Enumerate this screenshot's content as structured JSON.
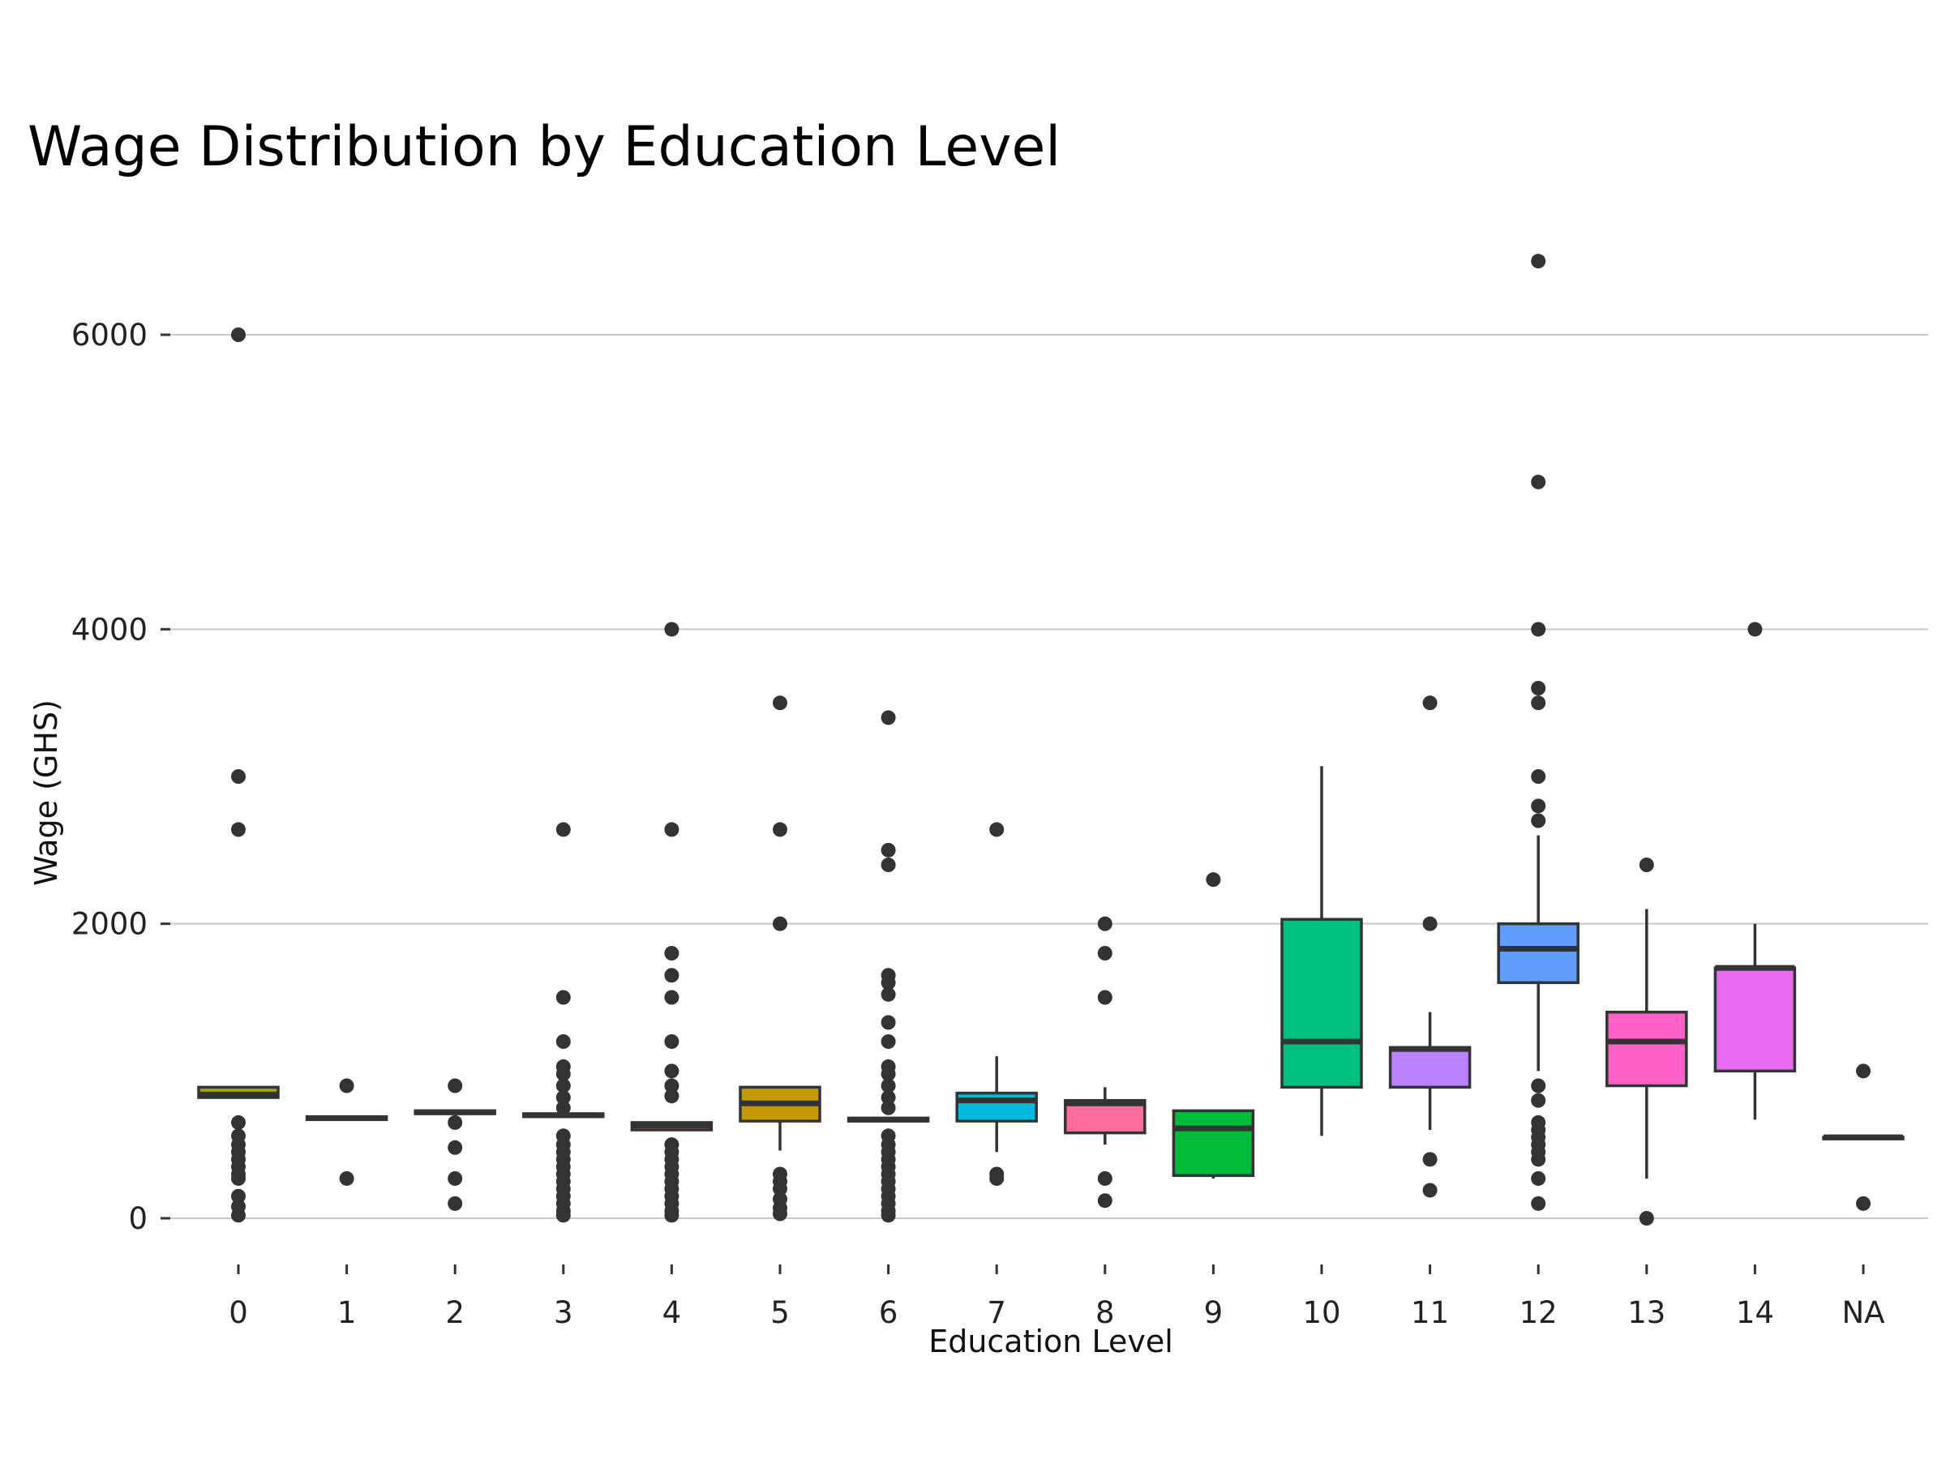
{
  "chart_data": {
    "type": "box",
    "title": "Wage Distribution by Education Level",
    "xlabel": "Education Level",
    "ylabel": "Wage (GHS)",
    "ylim": [
      -300,
      6600
    ],
    "yticks": [
      0,
      2000,
      4000,
      6000
    ],
    "grid": "horizontal",
    "legend": "none",
    "categories": [
      "0",
      "1",
      "2",
      "3",
      "4",
      "5",
      "6",
      "7",
      "8",
      "9",
      "10",
      "11",
      "12",
      "13",
      "14",
      "NA"
    ],
    "boxes": [
      {
        "category": "0",
        "color": "#A3A500",
        "q1": 820,
        "median": 840,
        "q3": 890,
        "whisker_low": 820,
        "whisker_high": 890,
        "outliers": [
          6000,
          3000,
          2640,
          650,
          560,
          500,
          450,
          400,
          350,
          300,
          270,
          150,
          80,
          20
        ]
      },
      {
        "category": "1",
        "color": "#E7861B",
        "q1": 670,
        "median": 680,
        "q3": 690,
        "whisker_low": 670,
        "whisker_high": 690,
        "outliers": [
          900,
          270
        ]
      },
      {
        "category": "2",
        "color": "#C49A00",
        "q1": 710,
        "median": 720,
        "q3": 730,
        "whisker_low": 710,
        "whisker_high": 730,
        "outliers": [
          900,
          650,
          480,
          270,
          100
        ]
      },
      {
        "category": "3",
        "color": "#ED8141",
        "q1": 690,
        "median": 700,
        "q3": 710,
        "whisker_low": 690,
        "whisker_high": 710,
        "outliers": [
          2640,
          1500,
          1200,
          1030,
          980,
          900,
          820,
          750,
          560,
          500,
          450,
          400,
          350,
          300,
          250,
          200,
          150,
          100,
          50,
          20
        ]
      },
      {
        "category": "4",
        "color": "#F8766D",
        "q1": 600,
        "median": 630,
        "q3": 650,
        "whisker_low": 600,
        "whisker_high": 650,
        "outliers": [
          4000,
          2640,
          1800,
          1650,
          1500,
          1200,
          1000,
          900,
          830,
          500,
          450,
          400,
          350,
          300,
          250,
          200,
          150,
          100,
          50,
          20
        ]
      },
      {
        "category": "5",
        "color": "#C49A00",
        "q1": 660,
        "median": 780,
        "q3": 890,
        "whisker_low": 460,
        "whisker_high": 890,
        "outliers": [
          3500,
          2640,
          2000,
          300,
          250,
          200,
          130,
          70,
          30
        ]
      },
      {
        "category": "6",
        "color": "#999999",
        "q1": 660,
        "median": 670,
        "q3": 680,
        "whisker_low": 660,
        "whisker_high": 680,
        "outliers": [
          3400,
          2500,
          2400,
          1650,
          1600,
          1520,
          1330,
          1200,
          1030,
          980,
          900,
          820,
          750,
          560,
          500,
          450,
          400,
          350,
          300,
          250,
          200,
          150,
          100,
          50,
          20
        ]
      },
      {
        "category": "7",
        "color": "#00BAE0",
        "q1": 660,
        "median": 800,
        "q3": 850,
        "whisker_low": 450,
        "whisker_high": 1100,
        "outliers": [
          2640,
          300,
          270
        ]
      },
      {
        "category": "8",
        "color": "#FF6C9C",
        "q1": 580,
        "median": 780,
        "q3": 800,
        "whisker_low": 500,
        "whisker_high": 890,
        "outliers": [
          2000,
          1800,
          1500,
          270,
          120
        ]
      },
      {
        "category": "9",
        "color": "#00BC3A",
        "q1": 290,
        "median": 610,
        "q3": 730,
        "whisker_low": 270,
        "whisker_high": 730,
        "outliers": [
          2300
        ]
      },
      {
        "category": "10",
        "color": "#00C080",
        "q1": 890,
        "median": 1200,
        "q3": 2030,
        "whisker_low": 560,
        "whisker_high": 3070,
        "outliers": []
      },
      {
        "category": "11",
        "color": "#B983FF",
        "q1": 890,
        "median": 1150,
        "q3": 1160,
        "whisker_low": 600,
        "whisker_high": 1400,
        "outliers": [
          3500,
          2000,
          400,
          190
        ]
      },
      {
        "category": "12",
        "color": "#619CFF",
        "q1": 1600,
        "median": 1830,
        "q3": 2000,
        "whisker_low": 1000,
        "whisker_high": 2600,
        "outliers": [
          6500,
          5000,
          4000,
          3600,
          3500,
          3000,
          2800,
          2700,
          900,
          800,
          650,
          600,
          550,
          500,
          450,
          400,
          270,
          100
        ]
      },
      {
        "category": "13",
        "color": "#FF61C9",
        "q1": 900,
        "median": 1200,
        "q3": 1400,
        "whisker_low": 270,
        "whisker_high": 2100,
        "outliers": [
          2400,
          0
        ]
      },
      {
        "category": "14",
        "color": "#E76BF3",
        "q1": 1000,
        "median": 1700,
        "q3": 1700,
        "whisker_low": 670,
        "whisker_high": 2000,
        "outliers": [
          4000
        ]
      },
      {
        "category": "NA",
        "color": "#999999",
        "q1": 550,
        "median": 550,
        "q3": 550,
        "whisker_low": 550,
        "whisker_high": 550,
        "outliers": [
          1000,
          100
        ]
      }
    ]
  }
}
